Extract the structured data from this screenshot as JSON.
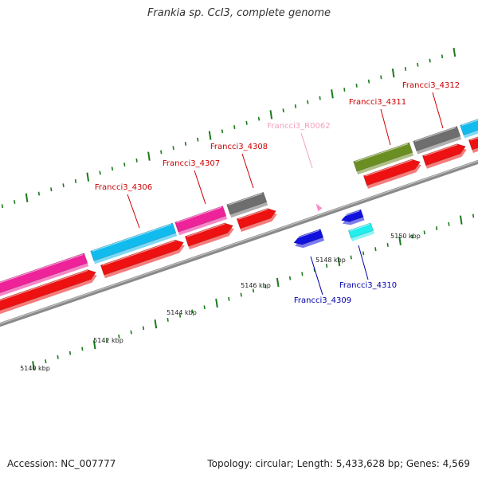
{
  "title": "Frankia sp. CcI3, complete genome",
  "footer": {
    "accession": "Accession: NC_007777",
    "summary": "Topology: circular; Length: 5,433,628 bp; Genes: 4,569"
  },
  "chart_data": {
    "type": "genome-map",
    "kbp_ticks": [
      "5140 kbp",
      "5142 kbp",
      "5144 kbp",
      "5146 kbp",
      "5148 kbp",
      "5150 kbp"
    ],
    "colors": {
      "axis": "#8a8a8a",
      "tick": "#1b7a1b",
      "label_red": "#cc0000",
      "label_blue": "#0000aa",
      "label_pink": "#f4a0c0",
      "cds": "#ee1111",
      "magenta": "#ee2299",
      "cyan": "#11bbee",
      "gray": "#6e6e6e",
      "olive": "#6b8e23",
      "blue": "#1111dd",
      "aqua": "#22eeee",
      "rna": "#ff88cc"
    },
    "labels": [
      {
        "text": "Francci3_4306",
        "color": "label_red"
      },
      {
        "text": "Francci3_4307",
        "color": "label_red"
      },
      {
        "text": "Francci3_4308",
        "color": "label_red"
      },
      {
        "text": "Francci3_R0062",
        "color": "label_pink"
      },
      {
        "text": "Francci3_4311",
        "color": "label_red"
      },
      {
        "text": "Francci3_4312",
        "color": "label_red"
      },
      {
        "text": "Francci3_4309",
        "color": "label_blue"
      },
      {
        "text": "Francci3_4310",
        "color": "label_blue"
      }
    ]
  }
}
